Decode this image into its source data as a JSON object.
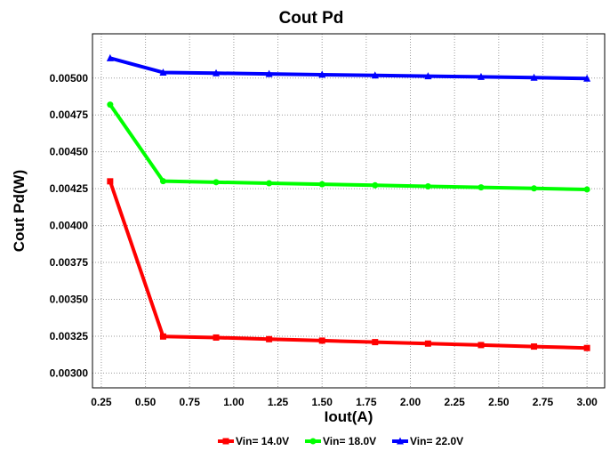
{
  "chart_data": {
    "type": "line",
    "title": "Cout  Pd",
    "xlabel": "Iout(A)",
    "ylabel": "Cout  Pd(W)",
    "xlim": [
      0.2,
      3.1
    ],
    "ylim": [
      0.0029,
      0.0053
    ],
    "xticks": [
      "0.25",
      "0.50",
      "0.75",
      "1.00",
      "1.25",
      "1.50",
      "1.75",
      "2.00",
      "2.25",
      "2.50",
      "2.75",
      "3.00"
    ],
    "yticks": [
      "0.00300",
      "0.00325",
      "0.00350",
      "0.00375",
      "0.00400",
      "0.00425",
      "0.00450",
      "0.00475",
      "0.00500"
    ],
    "grid": true,
    "legend_position": "bottom",
    "x": [
      0.3,
      0.6,
      0.9,
      1.2,
      1.5,
      1.8,
      2.1,
      2.4,
      2.7,
      3.0
    ],
    "series": [
      {
        "name": "Vin= 14.0V",
        "color": "#ff0000",
        "marker": "square",
        "values": [
          0.0043,
          0.003248,
          0.003241,
          0.00323,
          0.00322,
          0.00321,
          0.0032,
          0.00319,
          0.00318,
          0.00317
        ]
      },
      {
        "name": "Vin= 18.0V",
        "color": "#00ff00",
        "marker": "circle",
        "values": [
          0.00482,
          0.004301,
          0.004294,
          0.004287,
          0.00428,
          0.004273,
          0.004266,
          0.004259,
          0.004252,
          0.004245
        ]
      },
      {
        "name": "Vin= 22.0V",
        "color": "#0000ff",
        "marker": "triangle",
        "values": [
          0.005135,
          0.005038,
          0.005033,
          0.005028,
          0.005023,
          0.005018,
          0.005013,
          0.005008,
          0.005003,
          0.004997
        ]
      }
    ]
  }
}
